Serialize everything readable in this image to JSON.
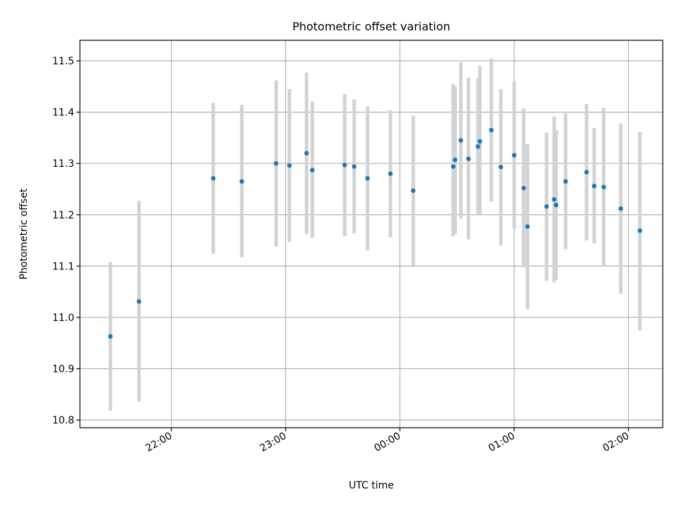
{
  "chart_data": {
    "type": "scatter",
    "title": "Photometric offset variation",
    "xlabel": "UTC time",
    "ylabel": "Photometric offset",
    "grid": true,
    "xlim_hours": [
      21.2,
      26.3
    ],
    "ylim": [
      10.785,
      11.54
    ],
    "x_ticks": [
      {
        "value": 22,
        "label": "22:00"
      },
      {
        "value": 23,
        "label": "23:00"
      },
      {
        "value": 24,
        "label": "00:00"
      },
      {
        "value": 25,
        "label": "01:00"
      },
      {
        "value": 26,
        "label": "02:00"
      }
    ],
    "y_ticks": [
      {
        "value": 10.8,
        "label": "10.8"
      },
      {
        "value": 10.9,
        "label": "10.9"
      },
      {
        "value": 11.0,
        "label": "11.0"
      },
      {
        "value": 11.1,
        "label": "11.1"
      },
      {
        "value": 11.2,
        "label": "11.2"
      },
      {
        "value": 11.3,
        "label": "11.3"
      },
      {
        "value": 11.4,
        "label": "11.4"
      },
      {
        "value": 11.5,
        "label": "11.5"
      }
    ],
    "point_color": "#1f77b4",
    "error_color": "#d3d3d3",
    "points": [
      {
        "time": "21:28",
        "y": 10.963,
        "err_low": 10.818,
        "err_high": 11.108
      },
      {
        "time": "21:43",
        "y": 11.031,
        "err_low": 10.836,
        "err_high": 11.227
      },
      {
        "time": "22:22",
        "y": 11.271,
        "err_low": 11.124,
        "err_high": 11.418
      },
      {
        "time": "22:37",
        "y": 11.265,
        "err_low": 11.117,
        "err_high": 11.414
      },
      {
        "time": "22:55",
        "y": 11.3,
        "err_low": 11.138,
        "err_high": 11.462
      },
      {
        "time": "23:02",
        "y": 11.296,
        "err_low": 11.147,
        "err_high": 11.445
      },
      {
        "time": "23:11",
        "y": 11.32,
        "err_low": 11.163,
        "err_high": 11.477
      },
      {
        "time": "23:14",
        "y": 11.287,
        "err_low": 11.155,
        "err_high": 11.42
      },
      {
        "time": "23:31",
        "y": 11.297,
        "err_low": 11.158,
        "err_high": 11.435
      },
      {
        "time": "23:36",
        "y": 11.294,
        "err_low": 11.164,
        "err_high": 11.425
      },
      {
        "time": "23:43",
        "y": 11.271,
        "err_low": 11.131,
        "err_high": 11.411
      },
      {
        "time": "23:55",
        "y": 11.28,
        "err_low": 11.156,
        "err_high": 11.404
      },
      {
        "time": "00:07",
        "y": 11.247,
        "err_low": 11.101,
        "err_high": 11.393
      },
      {
        "time": "00:28",
        "y": 11.294,
        "err_low": 11.158,
        "err_high": 11.455
      },
      {
        "time": "00:29",
        "y": 11.307,
        "err_low": 11.163,
        "err_high": 11.45
      },
      {
        "time": "00:32",
        "y": 11.345,
        "err_low": 11.193,
        "err_high": 11.497
      },
      {
        "time": "00:36",
        "y": 11.309,
        "err_low": 11.152,
        "err_high": 11.467
      },
      {
        "time": "00:41",
        "y": 11.333,
        "err_low": 11.2,
        "err_high": 11.466
      },
      {
        "time": "00:42",
        "y": 11.343,
        "err_low": 11.2,
        "err_high": 11.49
      },
      {
        "time": "00:48",
        "y": 11.365,
        "err_low": 11.226,
        "err_high": 11.505
      },
      {
        "time": "00:53",
        "y": 11.293,
        "err_low": 11.14,
        "err_high": 11.445
      },
      {
        "time": "01:00",
        "y": 11.316,
        "err_low": 11.173,
        "err_high": 11.46
      },
      {
        "time": "01:05",
        "y": 11.252,
        "err_low": 11.097,
        "err_high": 11.407
      },
      {
        "time": "01:07",
        "y": 11.177,
        "err_low": 11.016,
        "err_high": 11.338
      },
      {
        "time": "01:17",
        "y": 11.216,
        "err_low": 11.071,
        "err_high": 11.36
      },
      {
        "time": "01:21",
        "y": 11.23,
        "err_low": 11.068,
        "err_high": 11.391
      },
      {
        "time": "01:22",
        "y": 11.219,
        "err_low": 11.073,
        "err_high": 11.365
      },
      {
        "time": "01:27",
        "y": 11.265,
        "err_low": 11.133,
        "err_high": 11.398
      },
      {
        "time": "01:38",
        "y": 11.283,
        "err_low": 11.15,
        "err_high": 11.416
      },
      {
        "time": "01:42",
        "y": 11.256,
        "err_low": 11.144,
        "err_high": 11.369
      },
      {
        "time": "01:47",
        "y": 11.254,
        "err_low": 11.1,
        "err_high": 11.408
      },
      {
        "time": "01:56",
        "y": 11.212,
        "err_low": 11.046,
        "err_high": 11.378
      },
      {
        "time": "02:06",
        "y": 11.169,
        "err_low": 10.975,
        "err_high": 11.362
      }
    ]
  }
}
